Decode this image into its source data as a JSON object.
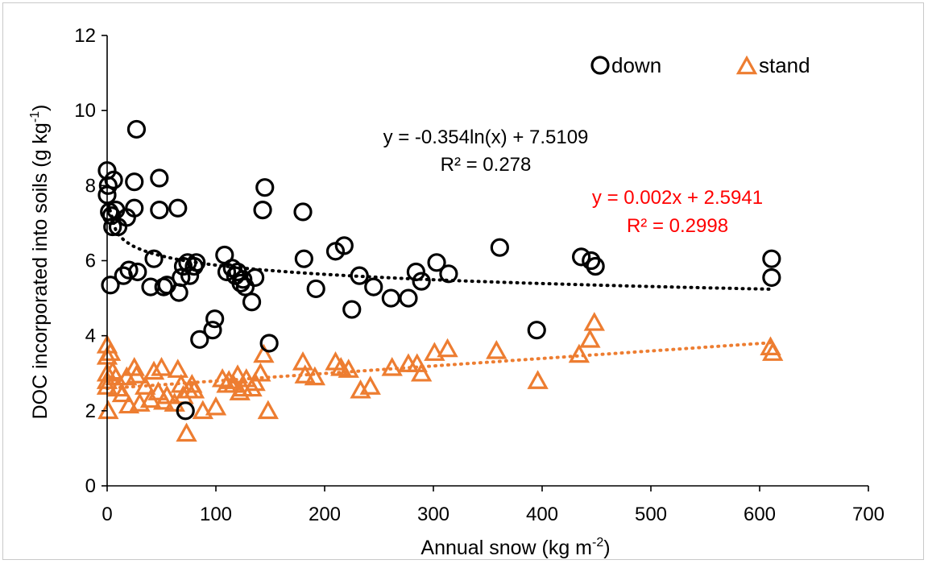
{
  "chart_data": {
    "type": "scatter",
    "xlabel": "Annual snow (kg m",
    "xlabel_sup": "-2",
    "xlabel_end": ")",
    "ylabel": "DOC incorporated into soils (g kg",
    "ylabel_sup": "-1",
    "ylabel_end": ")",
    "xlim": [
      0,
      700
    ],
    "ylim": [
      0,
      12
    ],
    "x_ticks": [
      "0",
      "100",
      "200",
      "300",
      "400",
      "500",
      "600",
      "700"
    ],
    "y_ticks": [
      "0",
      "2",
      "4",
      "6",
      "8",
      "10",
      "12"
    ],
    "grid": false,
    "legend_placement": "top-right",
    "series": [
      {
        "name": "down",
        "marker": "circle",
        "color": "#000000",
        "points": [
          [
            0,
            8.4
          ],
          [
            0,
            7.75
          ],
          [
            1,
            8.0
          ],
          [
            2,
            7.3
          ],
          [
            3,
            5.35
          ],
          [
            4,
            7.2
          ],
          [
            5,
            6.9
          ],
          [
            6,
            8.15
          ],
          [
            8,
            7.35
          ],
          [
            10,
            6.9
          ],
          [
            15,
            5.6
          ],
          [
            18,
            7.15
          ],
          [
            20,
            5.75
          ],
          [
            25,
            8.1
          ],
          [
            25,
            7.4
          ],
          [
            27,
            9.5
          ],
          [
            28,
            5.7
          ],
          [
            40,
            5.3
          ],
          [
            43,
            6.05
          ],
          [
            48,
            8.2
          ],
          [
            48,
            7.35
          ],
          [
            52,
            5.3
          ],
          [
            55,
            5.35
          ],
          [
            65,
            7.4
          ],
          [
            66,
            5.15
          ],
          [
            68,
            5.55
          ],
          [
            70,
            5.85
          ],
          [
            72,
            2.0
          ],
          [
            74,
            5.95
          ],
          [
            76,
            5.6
          ],
          [
            80,
            5.85
          ],
          [
            82,
            5.95
          ],
          [
            85,
            3.9
          ],
          [
            97,
            4.15
          ],
          [
            99,
            4.45
          ],
          [
            108,
            6.15
          ],
          [
            110,
            5.7
          ],
          [
            115,
            5.8
          ],
          [
            118,
            5.6
          ],
          [
            120,
            5.7
          ],
          [
            123,
            5.4
          ],
          [
            125,
            5.5
          ],
          [
            127,
            5.3
          ],
          [
            133,
            4.9
          ],
          [
            136,
            5.55
          ],
          [
            143,
            7.35
          ],
          [
            145,
            7.95
          ],
          [
            149,
            3.8
          ],
          [
            180,
            7.3
          ],
          [
            181,
            6.05
          ],
          [
            192,
            5.25
          ],
          [
            210,
            6.25
          ],
          [
            218,
            6.4
          ],
          [
            225,
            4.7
          ],
          [
            232,
            5.6
          ],
          [
            245,
            5.3
          ],
          [
            261,
            5.0
          ],
          [
            277,
            5.0
          ],
          [
            284,
            5.7
          ],
          [
            289,
            5.45
          ],
          [
            303,
            5.95
          ],
          [
            314,
            5.65
          ],
          [
            361,
            6.35
          ],
          [
            395,
            4.15
          ],
          [
            436,
            6.1
          ],
          [
            445,
            6.0
          ],
          [
            449,
            5.85
          ],
          [
            611,
            6.05
          ],
          [
            611,
            5.55
          ]
        ],
        "trendline": {
          "type": "log",
          "a": -0.354,
          "b": 7.5109,
          "x_from": 1,
          "x_to": 611
        },
        "equation": "y = -0.354ln(x) + 7.5109",
        "r2": "R² = 0.278"
      },
      {
        "name": "stand",
        "marker": "triangle",
        "color": "#ed7d31",
        "points": [
          [
            0,
            3.75
          ],
          [
            0,
            3.45
          ],
          [
            0,
            3.0
          ],
          [
            0,
            2.8
          ],
          [
            0,
            2.65
          ],
          [
            1,
            2.0
          ],
          [
            3,
            3.55
          ],
          [
            5,
            3.05
          ],
          [
            8,
            2.9
          ],
          [
            10,
            2.6
          ],
          [
            14,
            2.45
          ],
          [
            18,
            2.9
          ],
          [
            20,
            2.15
          ],
          [
            25,
            3.15
          ],
          [
            27,
            2.95
          ],
          [
            30,
            2.2
          ],
          [
            35,
            2.65
          ],
          [
            40,
            2.3
          ],
          [
            43,
            3.05
          ],
          [
            47,
            2.5
          ],
          [
            50,
            3.15
          ],
          [
            52,
            2.25
          ],
          [
            55,
            2.4
          ],
          [
            62,
            2.2
          ],
          [
            65,
            3.1
          ],
          [
            68,
            2.7
          ],
          [
            70,
            2.4
          ],
          [
            73,
            1.4
          ],
          [
            75,
            2.55
          ],
          [
            78,
            2.7
          ],
          [
            80,
            2.55
          ],
          [
            88,
            2.0
          ],
          [
            100,
            2.1
          ],
          [
            106,
            2.85
          ],
          [
            110,
            2.7
          ],
          [
            112,
            2.8
          ],
          [
            116,
            2.7
          ],
          [
            120,
            2.95
          ],
          [
            122,
            2.5
          ],
          [
            125,
            2.6
          ],
          [
            128,
            2.85
          ],
          [
            133,
            2.6
          ],
          [
            136,
            2.75
          ],
          [
            141,
            3.0
          ],
          [
            144,
            3.5
          ],
          [
            148,
            2.0
          ],
          [
            180,
            3.3
          ],
          [
            182,
            2.95
          ],
          [
            191,
            2.9
          ],
          [
            210,
            3.3
          ],
          [
            215,
            3.15
          ],
          [
            222,
            3.1
          ],
          [
            233,
            2.55
          ],
          [
            242,
            2.65
          ],
          [
            262,
            3.15
          ],
          [
            277,
            3.25
          ],
          [
            285,
            3.25
          ],
          [
            289,
            3.0
          ],
          [
            301,
            3.55
          ],
          [
            313,
            3.65
          ],
          [
            358,
            3.6
          ],
          [
            396,
            2.8
          ],
          [
            434,
            3.5
          ],
          [
            444,
            3.9
          ],
          [
            448,
            4.35
          ],
          [
            610,
            3.7
          ],
          [
            612,
            3.55
          ]
        ],
        "trendline": {
          "type": "linear",
          "a": 0.002,
          "b": 2.5941,
          "x_from": 0,
          "x_to": 612
        },
        "equation": "y = 0.002x + 2.5941",
        "r2": "R² = 0.2998"
      }
    ],
    "colors": {
      "equation_down": "#000000",
      "equation_stand": "#ff0000",
      "frame_border": "#c9c9c9"
    }
  }
}
